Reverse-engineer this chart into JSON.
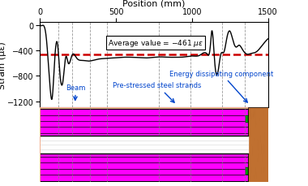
{
  "title_x": "Position (mm)",
  "title_y": "Strain (με)",
  "xlim": [
    0,
    1500
  ],
  "ylim": [
    -1300,
    50
  ],
  "yticks": [
    0,
    -400,
    -800,
    -1200
  ],
  "xticks": [
    0,
    500,
    1000,
    1500
  ],
  "average_value": -461,
  "average_line_y": -461,
  "grid_x_positions": [
    120,
    210,
    330,
    440,
    780,
    990,
    1200,
    1350
  ],
  "annotation_beam": "Beam",
  "annotation_edc": "Energy dissipating component",
  "annotation_psss": "Pre-stressed steel strands",
  "line_color": "#000000",
  "avg_line_color": "#cc0000",
  "annotation_color": "#0044cc",
  "magenta_color": "#ff00ff",
  "beam_bg_color": "#f0a080",
  "edc_color": "#c07030",
  "strand_white": "#ffffff",
  "black_line": "#000000",
  "pink_bg": "#f0b090"
}
